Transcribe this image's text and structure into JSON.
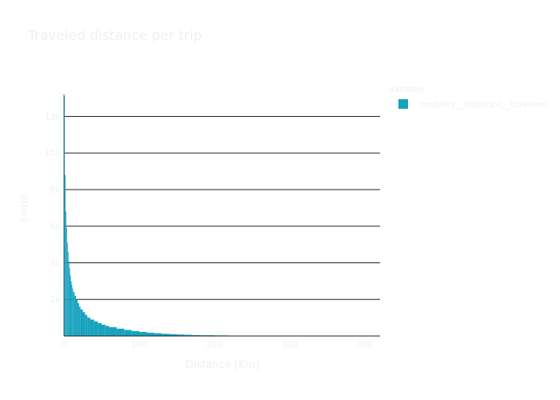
{
  "chart_data": {
    "type": "bar",
    "subtype": "histogram",
    "title": "Traveled distance per trip",
    "xlabel": "Distance [Km]",
    "ylabel": "count",
    "xlim": [
      0,
      420
    ],
    "ylim": [
      0,
      13.2
    ],
    "x_ticks": [
      0,
      100,
      200,
      300,
      400
    ],
    "x_tick_labels": [
      "0",
      "100",
      "200",
      "300",
      "400"
    ],
    "y_ticks": [
      2,
      4,
      6,
      8,
      10,
      12
    ],
    "y_tick_labels": [
      "2k",
      "4k",
      "6k",
      "8k",
      "10k",
      "12k"
    ],
    "grid": "horizontal",
    "legend": {
      "title": "variable",
      "placement": "top-right",
      "entries": [
        {
          "name": "mobility__distance__traveled",
          "color": "#17a2be"
        }
      ]
    },
    "series": [
      {
        "name": "mobility__distance__traveled",
        "color": "#17a2be",
        "bin_width": 1,
        "bin_starts": [
          0,
          1,
          2,
          3,
          4,
          5,
          6,
          7,
          8,
          9,
          10,
          11,
          12,
          14,
          16,
          18,
          20,
          22,
          25,
          28,
          31,
          35,
          40,
          45,
          50,
          55,
          60,
          70,
          80,
          90,
          100,
          110,
          120,
          130,
          140,
          150,
          160,
          170,
          180,
          200,
          220,
          250,
          300,
          350,
          400
        ],
        "values": [
          13.1,
          8.8,
          6.8,
          5.9,
          5.1,
          4.6,
          4.1,
          3.7,
          3.3,
          3.0,
          2.8,
          2.6,
          2.4,
          2.2,
          2.0,
          1.8,
          1.6,
          1.45,
          1.3,
          1.15,
          1.0,
          0.9,
          0.8,
          0.7,
          0.62,
          0.55,
          0.48,
          0.4,
          0.33,
          0.27,
          0.22,
          0.18,
          0.15,
          0.12,
          0.1,
          0.08,
          0.065,
          0.05,
          0.04,
          0.03,
          0.02,
          0.015,
          0.01,
          0.005,
          0.003
        ]
      }
    ]
  },
  "colors": {
    "bar": "#17a2be",
    "gridline": "#222222",
    "text": "#eef0f5"
  }
}
